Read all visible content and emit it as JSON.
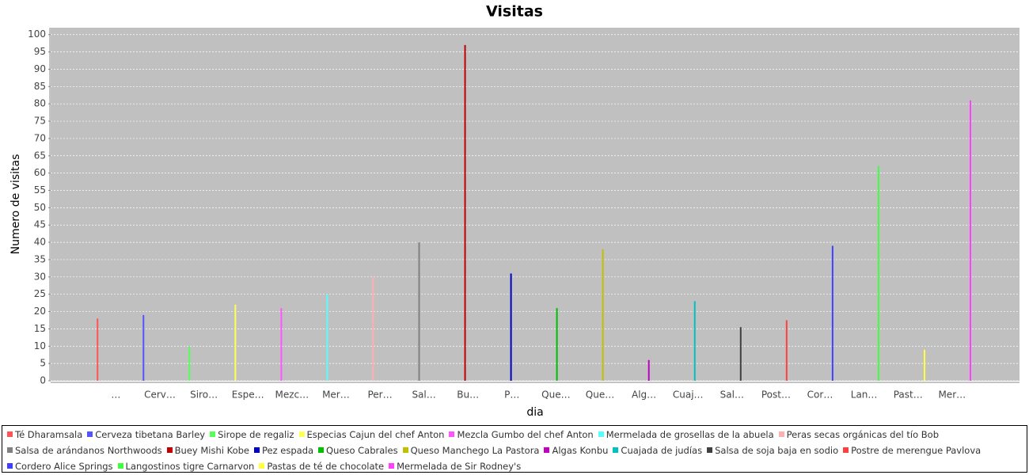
{
  "chart_data": {
    "type": "bar",
    "title": "Visitas",
    "x_label": "dia",
    "y_label": "Numero de visitas",
    "categories": [
      "…",
      "Cerv…",
      "Siro…",
      "Espe…",
      "Mezc…",
      "Mer…",
      "Per…",
      "Sal…",
      "Bu…",
      "P…",
      "Que…",
      "Que…",
      "Alg…",
      "Cuaj…",
      "Sal…",
      "Post…",
      "Cor…",
      "Lan…",
      "Past…",
      "Mer…"
    ],
    "ylim": [
      0,
      102
    ],
    "yticks": [
      0,
      5,
      10,
      15,
      20,
      25,
      30,
      35,
      40,
      45,
      50,
      55,
      60,
      65,
      70,
      75,
      80,
      85,
      90,
      95,
      100
    ],
    "grid": true,
    "legend": "bottom",
    "series": [
      {
        "name": "Té Dharamsala",
        "color": "#ff5555",
        "values": [
          18,
          null,
          null,
          null,
          null,
          null,
          null,
          null,
          null,
          null,
          null,
          null,
          null,
          null,
          null,
          null,
          null,
          null,
          null,
          null
        ]
      },
      {
        "name": "Cerveza tibetana Barley",
        "color": "#5555ff",
        "values": [
          null,
          19,
          null,
          null,
          null,
          null,
          null,
          null,
          null,
          null,
          null,
          null,
          null,
          null,
          null,
          null,
          null,
          null,
          null,
          null
        ]
      },
      {
        "name": "Sirope de regaliz",
        "color": "#55ff55",
        "values": [
          null,
          null,
          10,
          null,
          null,
          null,
          null,
          null,
          null,
          null,
          null,
          null,
          null,
          null,
          null,
          null,
          null,
          null,
          null,
          null
        ]
      },
      {
        "name": "Especias Cajun del chef Anton",
        "color": "#ffff55",
        "values": [
          null,
          null,
          null,
          22,
          null,
          null,
          null,
          null,
          null,
          null,
          null,
          null,
          null,
          null,
          null,
          null,
          null,
          null,
          null,
          null
        ]
      },
      {
        "name": "Mezcla Gumbo del chef Anton",
        "color": "#ff55ff",
        "values": [
          null,
          null,
          null,
          null,
          21,
          null,
          null,
          null,
          null,
          null,
          null,
          null,
          null,
          null,
          null,
          null,
          null,
          null,
          null,
          null
        ]
      },
      {
        "name": "Mermelada de grosellas de la abuela",
        "color": "#55ffff",
        "values": [
          null,
          null,
          null,
          null,
          null,
          25,
          null,
          null,
          null,
          null,
          null,
          null,
          null,
          null,
          null,
          null,
          null,
          null,
          null,
          null
        ]
      },
      {
        "name": "Peras secas orgánicas del tío Bob",
        "color": "#ffafaf",
        "values": [
          null,
          null,
          null,
          null,
          null,
          null,
          30,
          null,
          null,
          null,
          null,
          null,
          null,
          null,
          null,
          null,
          null,
          null,
          null,
          null
        ]
      },
      {
        "name": "Salsa de arándanos Northwoods",
        "color": "#808080",
        "values": [
          null,
          null,
          null,
          null,
          null,
          null,
          null,
          40,
          null,
          null,
          null,
          null,
          null,
          null,
          null,
          null,
          null,
          null,
          null,
          null
        ]
      },
      {
        "name": "Buey Mishi Kobe",
        "color": "#c00000",
        "values": [
          null,
          null,
          null,
          null,
          null,
          null,
          null,
          null,
          97,
          null,
          null,
          null,
          null,
          null,
          null,
          null,
          null,
          null,
          null,
          null
        ]
      },
      {
        "name": "Pez espada",
        "color": "#0000c0",
        "values": [
          null,
          null,
          null,
          null,
          null,
          null,
          null,
          null,
          null,
          31,
          null,
          null,
          null,
          null,
          null,
          null,
          null,
          null,
          null,
          null
        ]
      },
      {
        "name": "Queso Cabrales",
        "color": "#00c000",
        "values": [
          null,
          null,
          null,
          null,
          null,
          null,
          null,
          null,
          null,
          null,
          21,
          null,
          null,
          null,
          null,
          null,
          null,
          null,
          null,
          null
        ]
      },
      {
        "name": "Queso Manchego La Pastora",
        "color": "#c0c000",
        "values": [
          null,
          null,
          null,
          null,
          null,
          null,
          null,
          null,
          null,
          null,
          null,
          38,
          null,
          null,
          null,
          null,
          null,
          null,
          null,
          null
        ]
      },
      {
        "name": "Algas Konbu",
        "color": "#c000c0",
        "values": [
          null,
          null,
          null,
          null,
          null,
          null,
          null,
          null,
          null,
          null,
          null,
          null,
          6,
          null,
          null,
          null,
          null,
          null,
          null,
          null
        ]
      },
      {
        "name": "Cuajada de judías",
        "color": "#00c0c0",
        "values": [
          null,
          null,
          null,
          null,
          null,
          null,
          null,
          null,
          null,
          null,
          null,
          null,
          null,
          23,
          null,
          null,
          null,
          null,
          null,
          null
        ]
      },
      {
        "name": "Salsa de soja baja en sodio",
        "color": "#404040",
        "values": [
          null,
          null,
          null,
          null,
          null,
          null,
          null,
          null,
          null,
          null,
          null,
          null,
          null,
          null,
          15.5,
          null,
          null,
          null,
          null,
          null
        ]
      },
      {
        "name": "Postre de merengue Pavlova",
        "color": "#ff4040",
        "values": [
          null,
          null,
          null,
          null,
          null,
          null,
          null,
          null,
          null,
          null,
          null,
          null,
          null,
          null,
          null,
          17.5,
          null,
          null,
          null,
          null
        ]
      },
      {
        "name": "Cordero Alice Springs",
        "color": "#4040ff",
        "values": [
          null,
          null,
          null,
          null,
          null,
          null,
          null,
          null,
          null,
          null,
          null,
          null,
          null,
          null,
          null,
          null,
          39,
          null,
          null,
          null
        ]
      },
      {
        "name": "Langostinos tigre Carnarvon",
        "color": "#40ff40",
        "values": [
          null,
          null,
          null,
          null,
          null,
          null,
          null,
          null,
          null,
          null,
          null,
          null,
          null,
          null,
          null,
          null,
          null,
          62,
          null,
          null
        ]
      },
      {
        "name": "Pastas de té de chocolate",
        "color": "#ffff40",
        "values": [
          null,
          null,
          null,
          null,
          null,
          null,
          null,
          null,
          null,
          null,
          null,
          null,
          null,
          null,
          null,
          null,
          null,
          null,
          9,
          null
        ]
      },
      {
        "name": "Mermelada de Sir Rodney's",
        "color": "#ff40ff",
        "values": [
          null,
          null,
          null,
          null,
          null,
          null,
          null,
          null,
          null,
          null,
          null,
          null,
          null,
          null,
          null,
          null,
          null,
          null,
          null,
          81
        ]
      }
    ]
  }
}
